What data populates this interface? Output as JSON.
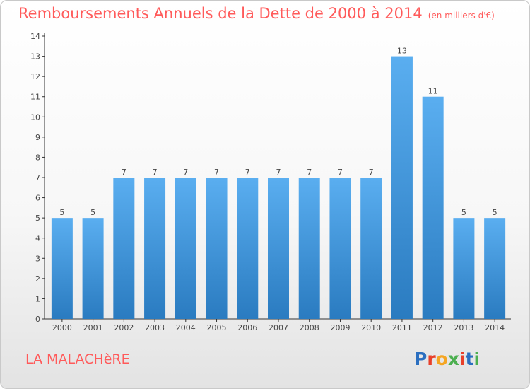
{
  "header": {
    "title": "Remboursements Annuels de la Dette de 2000 à 2014",
    "unit": "(en milliers d'€)"
  },
  "footer": {
    "place": "LA MALACHèRE",
    "logo": "Proxiti"
  },
  "colors": {
    "title": "#ff5a5a",
    "bar_top": "#5aaef0",
    "bar_bottom": "#2a7bc0",
    "axis": "#333333",
    "label": "#444444"
  },
  "chart_data": {
    "type": "bar",
    "categories": [
      "2000",
      "2001",
      "2002",
      "2003",
      "2004",
      "2005",
      "2006",
      "2007",
      "2008",
      "2009",
      "2010",
      "2011",
      "2012",
      "2013",
      "2014"
    ],
    "values": [
      5,
      5,
      7,
      7,
      7,
      7,
      7,
      7,
      7,
      7,
      7,
      13,
      11,
      5,
      5
    ],
    "title": "Remboursements Annuels de la Dette de 2000 à 2014",
    "subtitle": "(en milliers d'€)",
    "ylim": [
      0,
      14
    ],
    "yticks": [
      0,
      1,
      2,
      3,
      4,
      5,
      6,
      7,
      8,
      9,
      10,
      11,
      12,
      13,
      14
    ],
    "grid": false,
    "data_labels": true
  }
}
